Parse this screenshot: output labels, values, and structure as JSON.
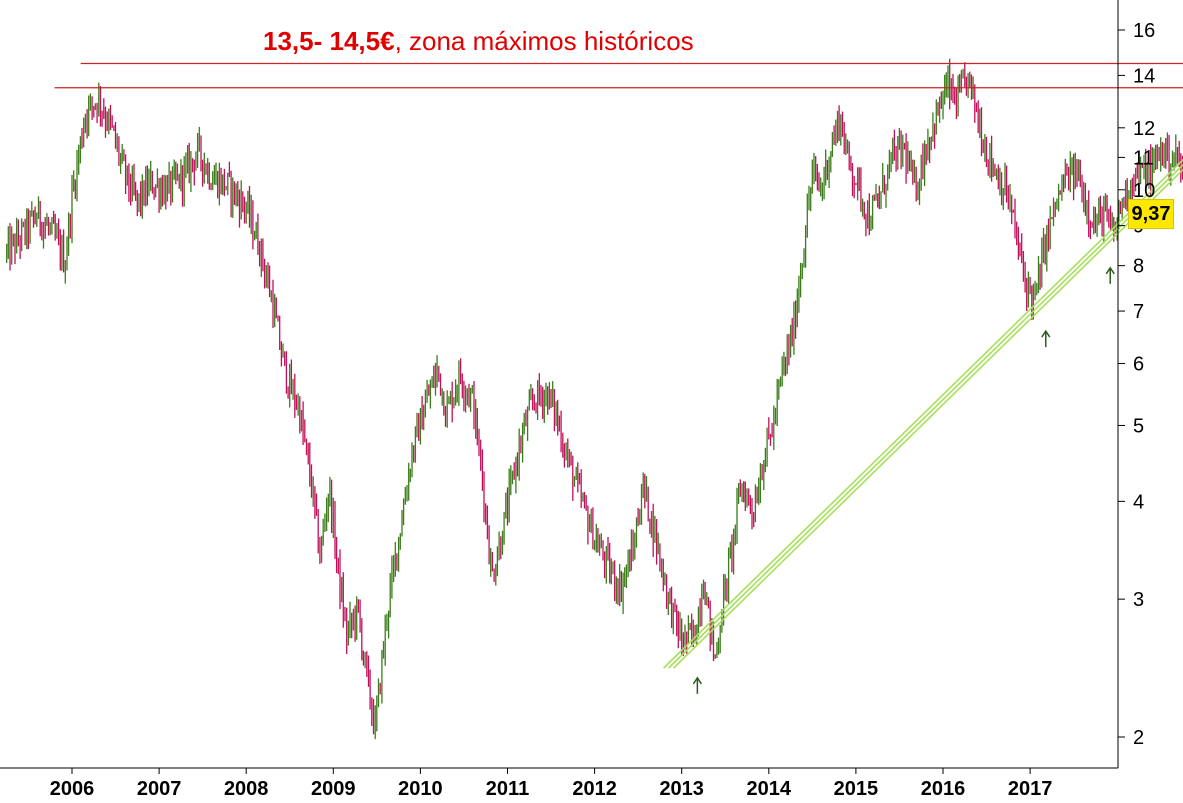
{
  "annotation": {
    "value": "13,5- 14,5€",
    "text": ", zona máximos históricos"
  },
  "last_price_label": "9,37",
  "colors": {
    "up": "#3a7d1a",
    "down": "#c0105a",
    "resistance": "#cc2222",
    "trend": "#a6e05a",
    "annotation": "#e00000",
    "badge": "#ffe800"
  },
  "chart_data": {
    "type": "candlestick",
    "title": "",
    "xlabel": "",
    "ylabel": "",
    "yscale": "log",
    "ylim": [
      1.95,
      17
    ],
    "yticks": [
      2,
      3,
      4,
      5,
      6,
      7,
      8,
      9,
      10,
      11,
      12,
      14,
      16
    ],
    "ytick_labels": [
      "2",
      "3",
      "4",
      "5",
      "6",
      "7",
      "8",
      "9",
      "10",
      "11",
      "12",
      "14",
      "16"
    ],
    "xlim": [
      2005.25,
      2018.3
    ],
    "xticks": [
      2006,
      2007,
      2008,
      2009,
      2010,
      2011,
      2012,
      2013,
      2014,
      2015,
      2016,
      2017
    ],
    "xtick_labels": [
      "2006",
      "2007",
      "2008",
      "2009",
      "2010",
      "2011",
      "2012",
      "2013",
      "2014",
      "2015",
      "2016",
      "2017"
    ],
    "grid": false,
    "price_path": [
      [
        2005.25,
        8.3
      ],
      [
        2005.45,
        8.8
      ],
      [
        2005.6,
        9.3
      ],
      [
        2005.8,
        8.7
      ],
      [
        2005.92,
        8.1
      ],
      [
        2006.0,
        9.8
      ],
      [
        2006.15,
        12.5
      ],
      [
        2006.3,
        13.1
      ],
      [
        2006.45,
        12.0
      ],
      [
        2006.6,
        10.5
      ],
      [
        2006.75,
        9.6
      ],
      [
        2006.9,
        10.2
      ],
      [
        2007.1,
        10.0
      ],
      [
        2007.3,
        10.5
      ],
      [
        2007.45,
        11.2
      ],
      [
        2007.6,
        10.4
      ],
      [
        2007.8,
        10.1
      ],
      [
        2008.0,
        9.5
      ],
      [
        2008.15,
        8.5
      ],
      [
        2008.3,
        7.2
      ],
      [
        2008.4,
        6.2
      ],
      [
        2008.5,
        5.6
      ],
      [
        2008.6,
        5.3
      ],
      [
        2008.75,
        4.2
      ],
      [
        2008.85,
        3.4
      ],
      [
        2008.95,
        4.2
      ],
      [
        2009.05,
        3.3
      ],
      [
        2009.15,
        2.7
      ],
      [
        2009.28,
        2.9
      ],
      [
        2009.38,
        2.4
      ],
      [
        2009.48,
        2.05
      ],
      [
        2009.62,
        2.9
      ],
      [
        2009.75,
        3.6
      ],
      [
        2009.9,
        4.6
      ],
      [
        2010.05,
        5.3
      ],
      [
        2010.2,
        5.9
      ],
      [
        2010.3,
        5.2
      ],
      [
        2010.45,
        5.8
      ],
      [
        2010.6,
        5.4
      ],
      [
        2010.72,
        4.2
      ],
      [
        2010.82,
        3.2
      ],
      [
        2010.95,
        3.7
      ],
      [
        2011.1,
        4.5
      ],
      [
        2011.2,
        5.0
      ],
      [
        2011.3,
        5.4
      ],
      [
        2011.45,
        5.5
      ],
      [
        2011.55,
        5.2
      ],
      [
        2011.7,
        4.5
      ],
      [
        2011.85,
        4.0
      ],
      [
        2012.0,
        3.6
      ],
      [
        2012.15,
        3.3
      ],
      [
        2012.3,
        3.1
      ],
      [
        2012.45,
        3.5
      ],
      [
        2012.55,
        4.2
      ],
      [
        2012.7,
        3.6
      ],
      [
        2012.85,
        3.0
      ],
      [
        2013.0,
        2.65
      ],
      [
        2013.15,
        2.7
      ],
      [
        2013.25,
        3.2
      ],
      [
        2013.38,
        2.5
      ],
      [
        2013.48,
        3.0
      ],
      [
        2013.58,
        3.5
      ],
      [
        2013.68,
        4.2
      ],
      [
        2013.82,
        3.9
      ],
      [
        2013.95,
        4.6
      ],
      [
        2014.05,
        5.0
      ],
      [
        2014.15,
        5.8
      ],
      [
        2014.28,
        6.6
      ],
      [
        2014.4,
        8.5
      ],
      [
        2014.5,
        10.5
      ],
      [
        2014.6,
        10.0
      ],
      [
        2014.7,
        11.2
      ],
      [
        2014.82,
        12.4
      ],
      [
        2014.9,
        11.0
      ],
      [
        2015.0,
        10.3
      ],
      [
        2015.15,
        9.2
      ],
      [
        2015.28,
        9.8
      ],
      [
        2015.4,
        10.9
      ],
      [
        2015.55,
        11.3
      ],
      [
        2015.68,
        10.0
      ],
      [
        2015.82,
        11.5
      ],
      [
        2015.95,
        12.6
      ],
      [
        2016.05,
        13.6
      ],
      [
        2016.15,
        12.9
      ],
      [
        2016.28,
        13.9
      ],
      [
        2016.38,
        12.7
      ],
      [
        2016.5,
        11.2
      ],
      [
        2016.62,
        10.5
      ],
      [
        2016.75,
        9.8
      ],
      [
        2016.85,
        8.6
      ],
      [
        2016.95,
        7.6
      ],
      [
        2017.05,
        7.2
      ],
      [
        2017.18,
        8.6
      ],
      [
        2017.3,
        9.6
      ],
      [
        2017.42,
        10.4
      ],
      [
        2017.55,
        10.5
      ],
      [
        2017.65,
        9.6
      ],
      [
        2017.75,
        9.0
      ],
      [
        2017.85,
        9.4
      ],
      [
        2017.95,
        8.7
      ],
      [
        2018.05,
        9.6
      ],
      [
        2018.18,
        10.4
      ],
      [
        2018.3,
        10.5
      ],
      [
        2018.42,
        10.7
      ],
      [
        2018.5,
        11.3
      ],
      [
        2018.6,
        11.0
      ],
      [
        2018.7,
        11.0
      ],
      [
        2018.78,
        10.1
      ],
      [
        2018.84,
        9.37
      ]
    ],
    "last_price": 9.37,
    "resistance_lines": [
      {
        "value": 13.5,
        "x_start": 2005.8,
        "x_end": 2018.78
      },
      {
        "value": 14.5,
        "x_start": 2006.1,
        "x_end": 2018.92
      }
    ],
    "trendline": {
      "x1": 2012.85,
      "y1": 2.45,
      "x2": 2018.95,
      "y2": 11.3
    },
    "support_arrows": [
      {
        "x": 2013.18,
        "y": 2.38
      },
      {
        "x": 2017.18,
        "y": 6.6
      },
      {
        "x": 2017.92,
        "y": 7.95
      }
    ]
  }
}
